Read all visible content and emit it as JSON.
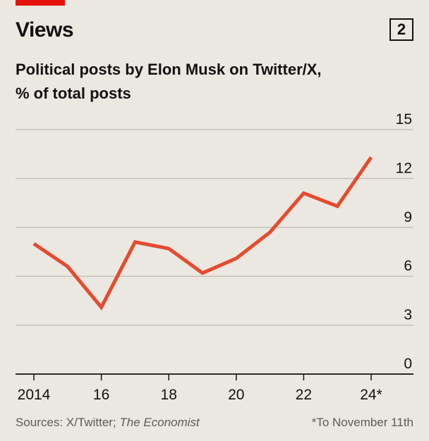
{
  "header": {
    "title": "Views",
    "chart_number": "2",
    "subtitle_line1": "Political posts by Elon Musk on Twitter/X,",
    "subtitle_line2": "% of total posts"
  },
  "footer": {
    "sources_prefix": "Sources: X/Twitter; ",
    "sources_italic": "The Economist",
    "note": "*To November 11th"
  },
  "colors": {
    "accent": "#e3120b",
    "line": "#e64a2e",
    "background": "#eae8e0",
    "grid": "#c4c2ba",
    "text": "#121212"
  },
  "chart_data": {
    "type": "line",
    "title": "Political posts by Elon Musk on Twitter/X, % of total posts",
    "xlabel": "",
    "ylabel": "",
    "x": [
      2014,
      2015,
      2016,
      2017,
      2018,
      2019,
      2020,
      2021,
      2022,
      2023,
      2024
    ],
    "x_tick_values": [
      2014,
      2016,
      2018,
      2020,
      2022,
      2024
    ],
    "x_tick_labels": [
      "2014",
      "16",
      "18",
      "20",
      "22",
      "24*"
    ],
    "ylim": [
      0,
      15
    ],
    "y_ticks": [
      0,
      3,
      6,
      9,
      12,
      15
    ],
    "grid": true,
    "y_axis_side": "right",
    "series": [
      {
        "values": [
          8.0,
          6.6,
          4.1,
          8.1,
          7.7,
          6.2,
          7.1,
          8.7,
          11.1,
          10.3,
          13.3
        ]
      }
    ]
  }
}
